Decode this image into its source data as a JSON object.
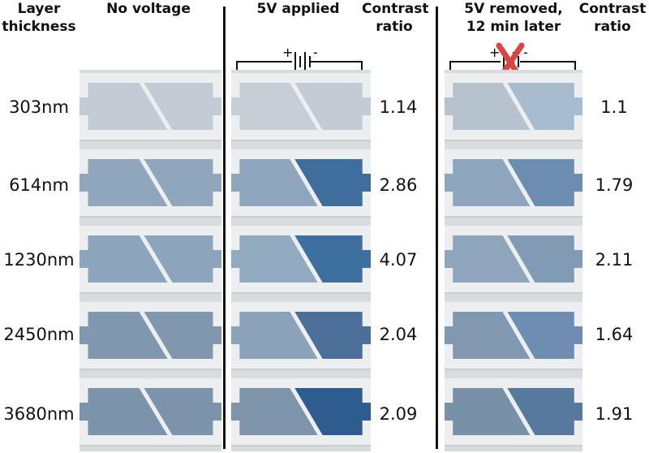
{
  "headers": {
    "layer_thickness": "Layer\nthickness",
    "no_voltage": "No voltage",
    "applied": "5V applied",
    "contrast1": "Contrast\nratio",
    "removed": "5V removed,\n12 min later",
    "contrast2": "Contrast\nratio"
  },
  "circuit_plus": "+",
  "circuit_minus": "-",
  "rows": [
    {
      "thickness": "303nm",
      "ratio_applied": "1.14",
      "ratio_removed": "1.1"
    },
    {
      "thickness": "614nm",
      "ratio_applied": "2.86",
      "ratio_removed": "1.79"
    },
    {
      "thickness": "1230nm",
      "ratio_applied": "4.07",
      "ratio_removed": "2.11"
    },
    {
      "thickness": "2450nm",
      "ratio_applied": "2.04",
      "ratio_removed": "1.64"
    },
    {
      "thickness": "3680nm",
      "ratio_applied": "2.09",
      "ratio_removed": "1.91"
    }
  ],
  "colors": {
    "no_voltage_fill": [
      "#c3ccd4",
      "#8fa6bd",
      "#8ca5bd",
      "#7f98b0",
      "#7b93ab"
    ],
    "applied_left": [
      "#c7cfd6",
      "#8ea6bd",
      "#92aac0",
      "#8aa3ba",
      "#7d94aa"
    ],
    "applied_right": [
      "#c3ccd4",
      "#3f6e9d",
      "#3d6f9f",
      "#4b6f98",
      "#2f5c8e"
    ],
    "removed_left": [
      "#b6c3cf",
      "#8ea6bd",
      "#8fa5bb",
      "#8199b0",
      "#7890a8"
    ],
    "removed_right": [
      "#a7bccf",
      "#6d8db0",
      "#819bb5",
      "#6f8db0",
      "#58799e"
    ],
    "cross": "#d94545"
  }
}
